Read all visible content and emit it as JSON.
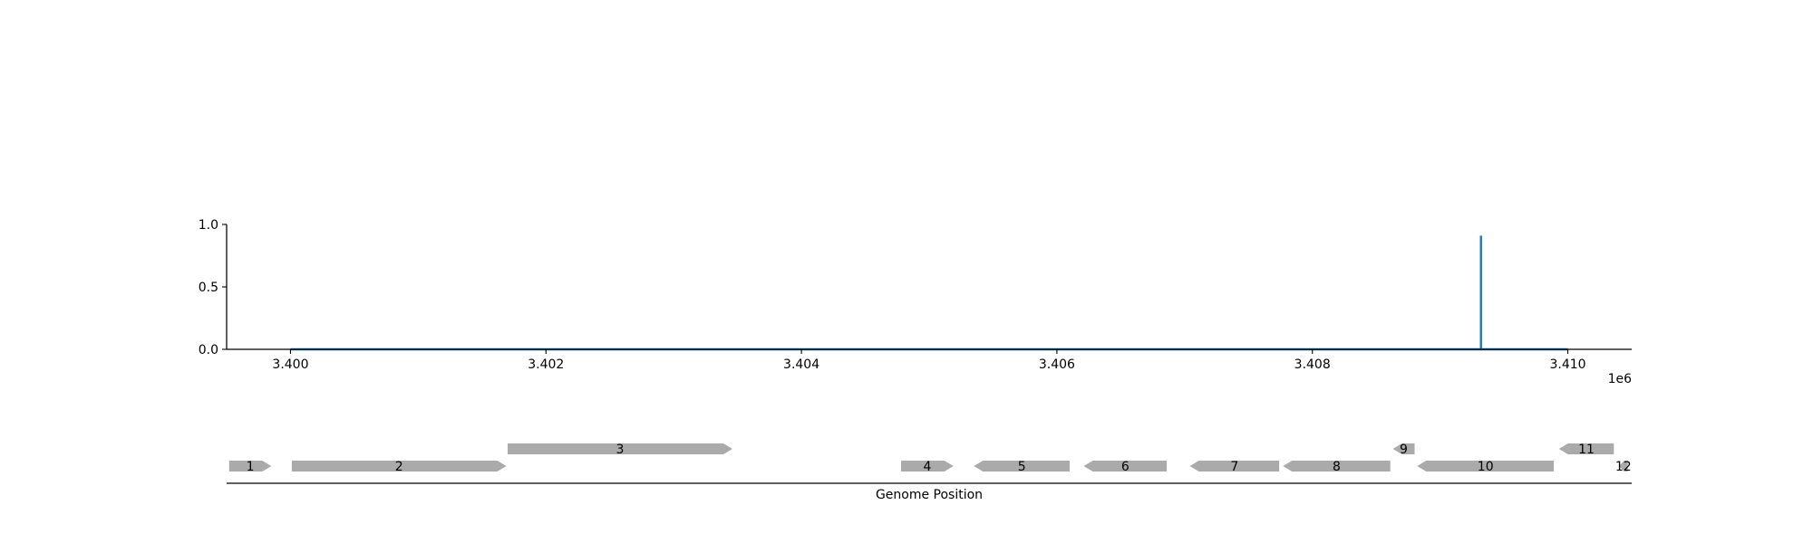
{
  "chart_data": [
    {
      "type": "line",
      "title": "",
      "xlabel": "",
      "ylabel": "",
      "x_offset_label": "1e6",
      "xlim": [
        3399500,
        3410500
      ],
      "ylim": [
        0.0,
        1.0
      ],
      "x_ticks": [
        3400000,
        3402000,
        3404000,
        3406000,
        3408000,
        3410000
      ],
      "x_tick_labels": [
        "3.400",
        "3.402",
        "3.404",
        "3.406",
        "3.408",
        "3.410"
      ],
      "y_ticks": [
        0.0,
        0.5,
        1.0
      ],
      "y_tick_labels": [
        "0.0",
        "0.5",
        "1.0"
      ],
      "grid": false,
      "color": "#1f77b4",
      "series": [
        {
          "x": [
            3400000,
            3409320,
            3409320,
            3409320,
            3409320,
            3410000
          ],
          "y": [
            0.0,
            0.0,
            0.91,
            0.91,
            0.0,
            0.0
          ]
        }
      ]
    },
    {
      "type": "gene_track",
      "xlabel": "Genome Position",
      "xlim": [
        3399500,
        3410500
      ],
      "gene_color": "#aaaaaa",
      "genes": [
        {
          "label": "1",
          "start": 3399520,
          "end": 3399850,
          "strand": "+",
          "row": 0
        },
        {
          "label": "2",
          "start": 3400010,
          "end": 3401690,
          "strand": "+",
          "row": 0
        },
        {
          "label": "3",
          "start": 3401700,
          "end": 3403460,
          "strand": "+",
          "row": 1
        },
        {
          "label": "4",
          "start": 3404780,
          "end": 3405190,
          "strand": "+",
          "row": 0
        },
        {
          "label": "5",
          "start": 3405350,
          "end": 3406100,
          "strand": "-",
          "row": 0
        },
        {
          "label": "6",
          "start": 3406210,
          "end": 3406860,
          "strand": "-",
          "row": 0
        },
        {
          "label": "7",
          "start": 3407040,
          "end": 3407740,
          "strand": "-",
          "row": 0
        },
        {
          "label": "8",
          "start": 3407770,
          "end": 3408610,
          "strand": "-",
          "row": 0
        },
        {
          "label": "9",
          "start": 3408630,
          "end": 3408800,
          "strand": "-",
          "row": 1
        },
        {
          "label": "10",
          "start": 3408820,
          "end": 3409890,
          "strand": "-",
          "row": 0
        },
        {
          "label": "11",
          "start": 3409930,
          "end": 3410360,
          "strand": "-",
          "row": 1
        },
        {
          "label": "12",
          "start": 3410400,
          "end": 3410470,
          "strand": "-",
          "row": 0
        }
      ]
    }
  ]
}
